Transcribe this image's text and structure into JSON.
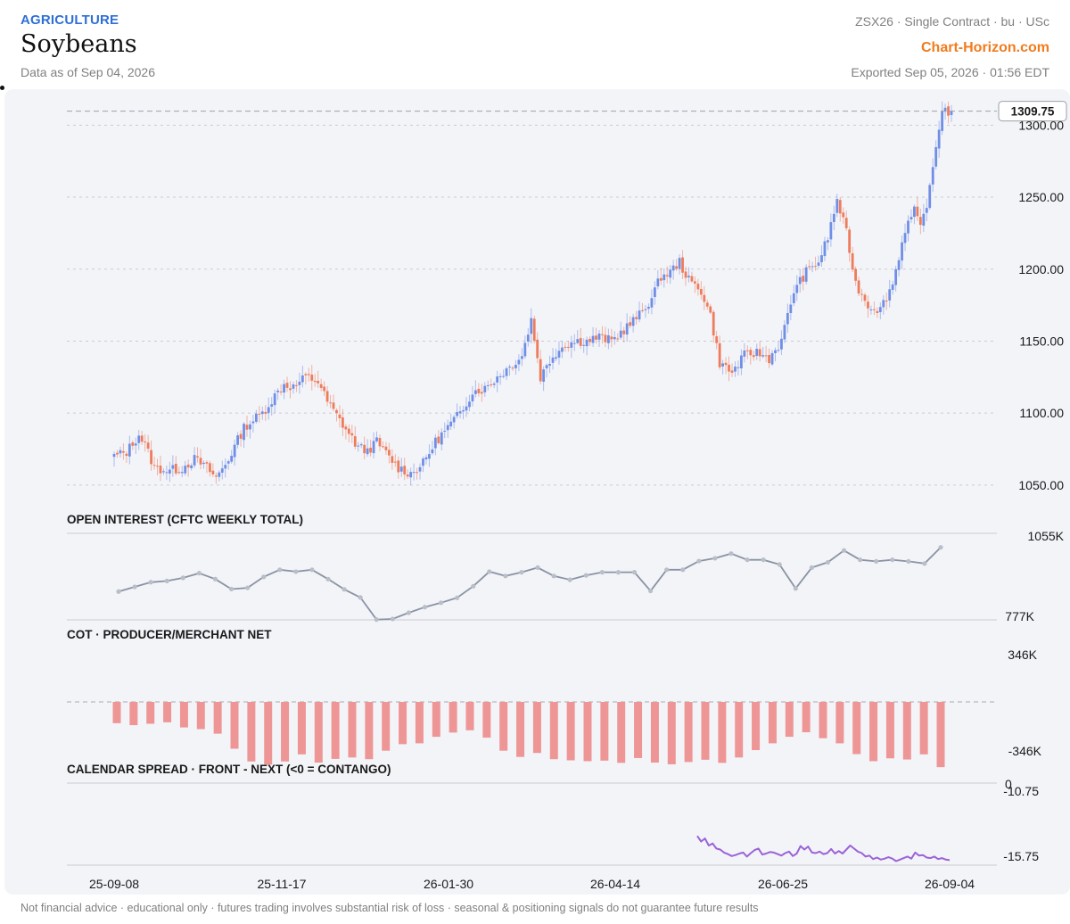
{
  "header": {
    "category": "AGRICULTURE",
    "title": "Soybeans",
    "as_of": "Data as of Sep 04, 2026",
    "contract": "ZSX26 · Single Contract · bu · USc",
    "brand": "Chart-Horizon.com",
    "exported": "Exported Sep 05, 2026 · 01:56 EDT"
  },
  "footer": "Not financial advice · educational only · futures trading involves substantial risk of loss · seasonal & positioning signals do not guarantee future results",
  "colors": {
    "up": "#6f8ee6",
    "down": "#ee7c5c",
    "oi_line": "#8a93a3",
    "cot_bar": "#ee9696",
    "spread_line": "#9a63d8",
    "brand": "#f07c1e",
    "category": "#2f6fd6"
  },
  "chart_data": [
    {
      "type": "candlestick",
      "title": "",
      "ylim": [
        1040,
        1325
      ],
      "yticks": [
        1050,
        1100,
        1150,
        1200,
        1250,
        1300
      ],
      "ytick_labels": [
        "1050.00",
        "1100.00",
        "1150.00",
        "1200.00",
        "1250.00",
        "1300.00"
      ],
      "last_price": 1309.75,
      "last_price_label": "1309.75",
      "x_range": [
        "2025-09-08",
        "2026-09-04"
      ],
      "xtick_labels": [
        "25-09-08",
        "25-11-17",
        "26-01-30",
        "26-04-14",
        "26-06-25",
        "26-09-04"
      ],
      "close_path": [
        [
          0,
          1070
        ],
        [
          4,
          1073
        ],
        [
          8,
          1085
        ],
        [
          10,
          1078
        ],
        [
          13,
          1062
        ],
        [
          18,
          1060
        ],
        [
          22,
          1062
        ],
        [
          26,
          1068
        ],
        [
          30,
          1062
        ],
        [
          33,
          1055
        ],
        [
          37,
          1068
        ],
        [
          42,
          1090
        ],
        [
          48,
          1100
        ],
        [
          52,
          1112
        ],
        [
          55,
          1120
        ],
        [
          58,
          1118
        ],
        [
          62,
          1125
        ],
        [
          66,
          1122
        ],
        [
          69,
          1108
        ],
        [
          74,
          1092
        ],
        [
          79,
          1076
        ],
        [
          82,
          1074
        ],
        [
          85,
          1080
        ],
        [
          88,
          1072
        ],
        [
          92,
          1062
        ],
        [
          96,
          1058
        ],
        [
          100,
          1065
        ],
        [
          104,
          1080
        ],
        [
          108,
          1090
        ],
        [
          112,
          1100
        ],
        [
          116,
          1115
        ],
        [
          120,
          1117
        ],
        [
          124,
          1125
        ],
        [
          128,
          1132
        ],
        [
          132,
          1140
        ],
        [
          135,
          1165
        ],
        [
          138,
          1125
        ],
        [
          142,
          1140
        ],
        [
          146,
          1148
        ],
        [
          150,
          1150
        ],
        [
          153,
          1150
        ],
        [
          157,
          1153
        ],
        [
          161,
          1150
        ],
        [
          165,
          1158
        ],
        [
          170,
          1168
        ],
        [
          174,
          1180
        ],
        [
          177,
          1195
        ],
        [
          180,
          1198
        ],
        [
          183,
          1205
        ],
        [
          186,
          1192
        ],
        [
          190,
          1185
        ],
        [
          193,
          1168
        ],
        [
          196,
          1135
        ],
        [
          200,
          1128
        ],
        [
          204,
          1140
        ],
        [
          208,
          1142
        ],
        [
          212,
          1138
        ],
        [
          216,
          1150
        ],
        [
          220,
          1185
        ],
        [
          224,
          1198
        ],
        [
          228,
          1205
        ],
        [
          231,
          1222
        ],
        [
          234,
          1248
        ],
        [
          237,
          1225
        ],
        [
          240,
          1190
        ],
        [
          244,
          1175
        ],
        [
          248,
          1172
        ],
        [
          252,
          1190
        ],
        [
          256,
          1228
        ],
        [
          259,
          1240
        ],
        [
          261,
          1228
        ],
        [
          264,
          1255
        ],
        [
          266,
          1285
        ],
        [
          268,
          1312
        ],
        [
          271,
          1308
        ]
      ]
    },
    {
      "type": "line",
      "title": "OPEN INTEREST (CFTC WEEKLY TOTAL)",
      "ylim": [
        777,
        1055
      ],
      "ytick_labels": [
        "1055K",
        "777K"
      ],
      "values": [
        868,
        883,
        898,
        902,
        912,
        927,
        908,
        876,
        880,
        915,
        938,
        932,
        938,
        908,
        875,
        849,
        778,
        780,
        800,
        818,
        832,
        848,
        885,
        932,
        918,
        930,
        945,
        918,
        906,
        920,
        930,
        930,
        930,
        870,
        938,
        938,
        966,
        975,
        990,
        970,
        970,
        955,
        878,
        945,
        962,
        1000,
        970,
        965,
        970,
        965,
        958,
        1010
      ]
    },
    {
      "type": "bar",
      "title": "COT · PRODUCER/MERCHANT NET",
      "ylim": [
        -346,
        346
      ],
      "ytick_labels": [
        "346K",
        "-346K"
      ],
      "values": [
        -75,
        -82,
        -77,
        -72,
        -90,
        -96,
        -112,
        -165,
        -210,
        -221,
        -210,
        -185,
        -214,
        -201,
        -196,
        -202,
        -172,
        -149,
        -146,
        -123,
        -108,
        -100,
        -126,
        -172,
        -194,
        -180,
        -202,
        -206,
        -209,
        -207,
        -215,
        -198,
        -214,
        -220,
        -212,
        -204,
        -215,
        -196,
        -170,
        -146,
        -123,
        -107,
        -128,
        -146,
        -184,
        -209,
        -199,
        -203,
        -185,
        -230
      ]
    },
    {
      "type": "line",
      "title": "CALENDAR SPREAD · FRONT - NEXT (<0 = CONTANGO)",
      "ylim": [
        -16.3,
        0
      ],
      "ytick_labels": [
        "0",
        "-10.75",
        "-15.75"
      ],
      "values": [
        -10.5,
        -11.6,
        -11.0,
        -12.4,
        -12.0,
        -13.0,
        -13.2,
        -13.8,
        -14.1,
        -14.5,
        -14.3,
        -14.0,
        -13.8,
        -14.6,
        -13.9,
        -13.3,
        -13.0,
        -14.2,
        -14.0,
        -13.7,
        -13.8,
        -14.1,
        -14.4,
        -13.9,
        -13.6,
        -14.5,
        -14.0,
        -12.5,
        -13.2,
        -12.6,
        -13.8,
        -13.9,
        -13.6,
        -14.1,
        -13.9,
        -13.1,
        -14.0,
        -13.5,
        -14.0,
        -13.2,
        -12.4,
        -13.0,
        -13.6,
        -13.9,
        -14.6,
        -14.4,
        -15.1,
        -14.8,
        -15.2,
        -15.0,
        -14.7,
        -15.0,
        -15.5,
        -15.2,
        -14.9,
        -14.6,
        -15.0,
        -13.8,
        -14.4,
        -14.3,
        -14.8,
        -14.9,
        -14.6,
        -15.1,
        -14.9,
        -15.2,
        -15.3
      ]
    }
  ]
}
